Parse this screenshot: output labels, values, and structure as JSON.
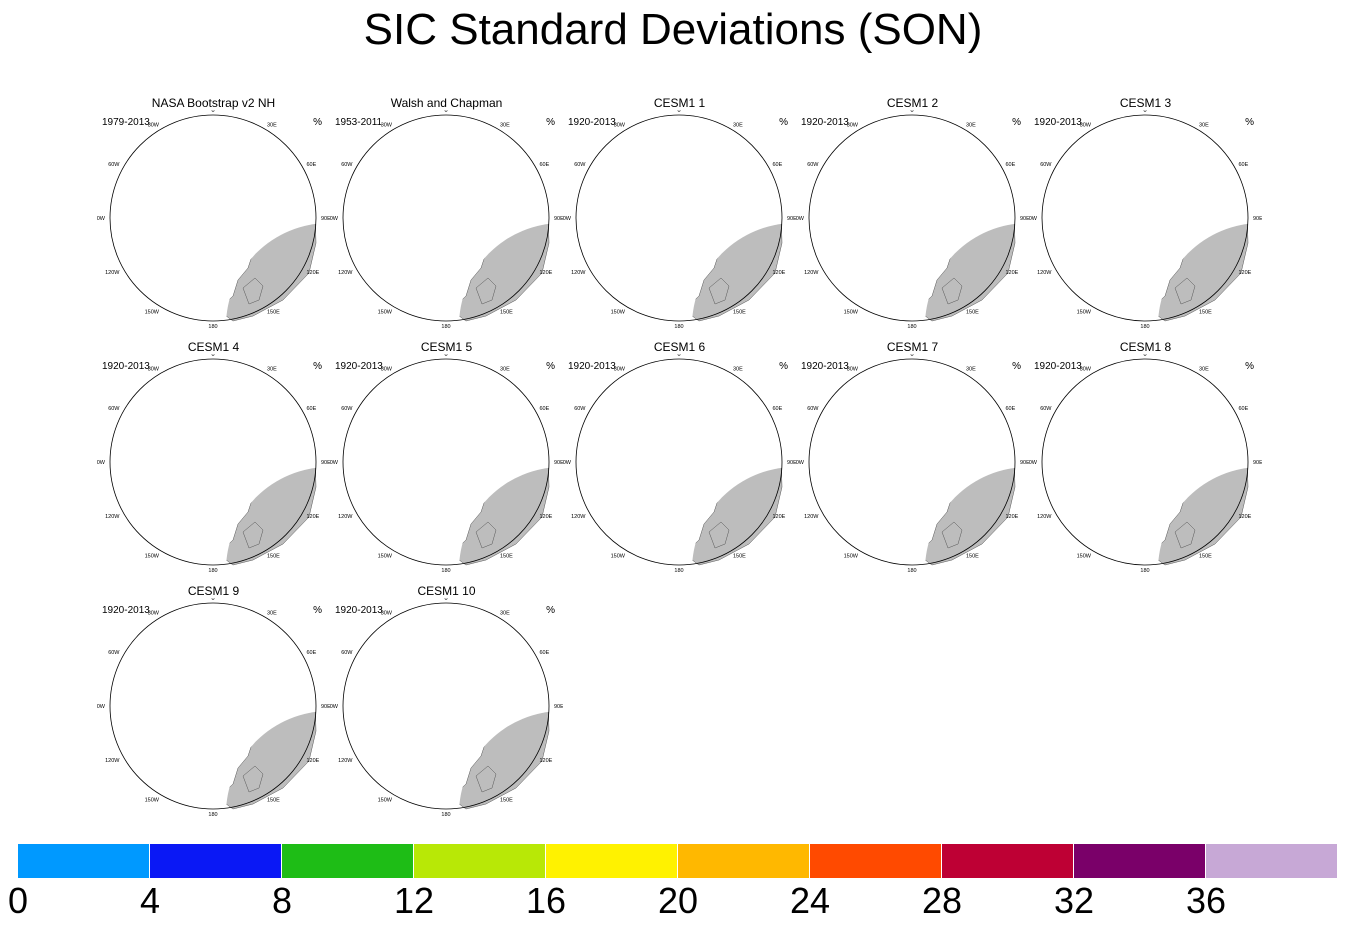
{
  "title": "SIC Standard Deviations (SON)",
  "units_label": "%",
  "longitude_labels": [
    "180",
    "150E",
    "120E",
    "90E",
    "60E",
    "30E",
    "0",
    "30W",
    "60W",
    "90W",
    "120W",
    "150W"
  ],
  "panels": [
    {
      "title": "NASA Bootstrap v2 NH",
      "period": "1979-2013",
      "variant": "obs1"
    },
    {
      "title": "Walsh and Chapman",
      "period": "1953-2011",
      "variant": "obs2"
    },
    {
      "title": "CESM1 1",
      "period": "1920-2013",
      "variant": "model"
    },
    {
      "title": "CESM1 2",
      "period": "1920-2013",
      "variant": "model"
    },
    {
      "title": "CESM1 3",
      "period": "1920-2013",
      "variant": "model"
    },
    {
      "title": "CESM1 4",
      "period": "1920-2013",
      "variant": "model"
    },
    {
      "title": "CESM1 5",
      "period": "1920-2013",
      "variant": "model"
    },
    {
      "title": "CESM1 6",
      "period": "1920-2013",
      "variant": "model"
    },
    {
      "title": "CESM1 7",
      "period": "1920-2013",
      "variant": "model"
    },
    {
      "title": "CESM1 8",
      "period": "1920-2013",
      "variant": "model"
    },
    {
      "title": "CESM1 9",
      "period": "1920-2013",
      "variant": "model"
    },
    {
      "title": "CESM1 10",
      "period": "1920-2013",
      "variant": "model"
    }
  ],
  "colorbar": {
    "labels": [
      "0",
      "4",
      "8",
      "12",
      "16",
      "20",
      "24",
      "28",
      "32",
      "36"
    ],
    "colors": [
      "#0099ff",
      "#0a18f5",
      "#1ebd16",
      "#b8e806",
      "#fff200",
      "#ffb800",
      "#ff4a00",
      "#be0034",
      "#7a0069",
      "#c7a8d6"
    ]
  },
  "map_colors": {
    "land": "#bdbdbd",
    "ocean": "#ffffff",
    "outline": "#555555"
  }
}
